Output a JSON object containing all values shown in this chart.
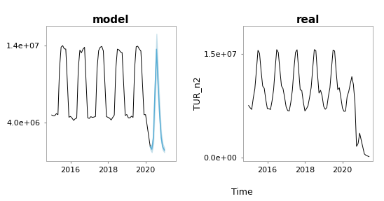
{
  "title_left": "model",
  "title_right": "real",
  "xlabel": "Time",
  "ylabel_right": "TUR_n2",
  "left_ylim": [
    -1000000.0,
    16500000.0
  ],
  "right_ylim": [
    -500000.0,
    19000000.0
  ],
  "left_yticks": [
    4000000.0,
    14000000.0
  ],
  "left_ytick_labels": [
    "4.0e+06",
    "1.4e+07"
  ],
  "right_yticks": [
    0.0,
    15000000.0
  ],
  "right_ytick_labels": [
    "0.0e+00",
    "1.5e+07"
  ],
  "xlim_left": [
    2014.7,
    2021.6
  ],
  "xlim_right": [
    2014.7,
    2021.6
  ],
  "xticks": [
    2016,
    2018,
    2020
  ],
  "bg_color": "#ffffff",
  "line_color": "#000000",
  "forecast_line_color": "#5bafd6",
  "forecast_band_color": "#a8cfe0",
  "title_fontsize": 11,
  "tick_fontsize": 8,
  "label_fontsize": 9
}
